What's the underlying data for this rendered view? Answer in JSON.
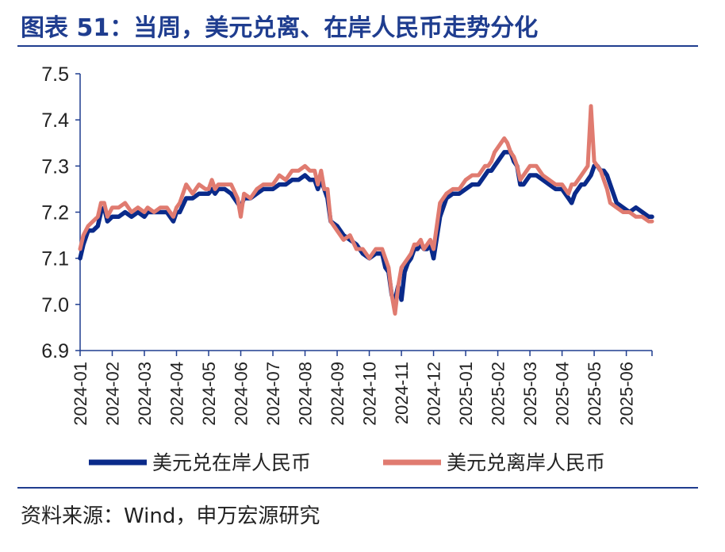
{
  "title": "图表 51：当周，美元兑离、在岸人民币走势分化",
  "source": "资料来源：Wind，申万宏源研究",
  "chart_data": {
    "type": "line",
    "title": "图表 51：当周，美元兑离、在岸人民币走势分化",
    "xlabel": "",
    "ylabel": "",
    "ylim": [
      6.9,
      7.5
    ],
    "yticks": [
      "6.9",
      "7.0",
      "7.1",
      "7.2",
      "7.3",
      "7.4",
      "7.5"
    ],
    "xticks": [
      "2024-01",
      "2024-02",
      "2024-03",
      "2024-04",
      "2024-05",
      "2024-06",
      "2024-07",
      "2024-08",
      "2024-09",
      "2024-10",
      "2024-11",
      "2024-12",
      "2025-01",
      "2025-02",
      "2025-03",
      "2025-04",
      "2025-05",
      "2025-06"
    ],
    "xrange": [
      0,
      17.8
    ],
    "grid": false,
    "legend_position": "bottom",
    "colors": {
      "onshore": "#0a2a8a",
      "offshore": "#e07b70",
      "axis": "#1f3d8f"
    },
    "series": [
      {
        "name": "美元兑在岸人民币",
        "x": [
          0,
          0.1,
          0.25,
          0.4,
          0.55,
          0.65,
          0.75,
          0.85,
          1.0,
          1.2,
          1.4,
          1.6,
          1.8,
          2.0,
          2.1,
          2.3,
          2.5,
          2.7,
          2.9,
          3.0,
          3.1,
          3.3,
          3.5,
          3.7,
          3.9,
          4.0,
          4.1,
          4.2,
          4.3,
          4.5,
          4.7,
          4.9,
          5.0,
          5.1,
          5.3,
          5.5,
          5.7,
          5.9,
          6.0,
          6.2,
          6.4,
          6.6,
          6.8,
          7.0,
          7.15,
          7.3,
          7.4,
          7.5,
          7.6,
          7.7,
          7.8,
          8.0,
          8.2,
          8.4,
          8.6,
          8.8,
          9.0,
          9.2,
          9.4,
          9.5,
          9.6,
          9.7,
          9.8,
          9.9,
          10.0,
          10.1,
          10.2,
          10.3,
          10.4,
          10.5,
          10.6,
          10.7,
          10.8,
          10.9,
          11.0,
          11.2,
          11.4,
          11.6,
          11.8,
          12.0,
          12.2,
          12.4,
          12.6,
          12.7,
          12.8,
          12.9,
          13.0,
          13.1,
          13.2,
          13.3,
          13.4,
          13.5,
          13.6,
          13.7,
          13.8,
          14.0,
          14.2,
          14.4,
          14.6,
          14.8,
          15.0,
          15.1,
          15.2,
          15.3,
          15.4,
          15.5,
          15.6,
          15.7,
          15.8,
          15.9,
          16.0,
          16.1,
          16.2,
          16.3,
          16.4,
          16.5,
          16.7,
          16.9,
          17.1,
          17.3,
          17.5,
          17.7,
          17.8
        ],
        "values": [
          7.1,
          7.13,
          7.16,
          7.16,
          7.17,
          7.2,
          7.21,
          7.18,
          7.19,
          7.19,
          7.2,
          7.19,
          7.2,
          7.19,
          7.2,
          7.2,
          7.2,
          7.2,
          7.18,
          7.2,
          7.2,
          7.23,
          7.23,
          7.24,
          7.24,
          7.24,
          7.25,
          7.24,
          7.25,
          7.25,
          7.24,
          7.22,
          7.21,
          7.23,
          7.23,
          7.24,
          7.25,
          7.25,
          7.25,
          7.26,
          7.26,
          7.27,
          7.27,
          7.28,
          7.27,
          7.27,
          7.25,
          7.27,
          7.25,
          7.23,
          7.18,
          7.17,
          7.15,
          7.14,
          7.13,
          7.11,
          7.1,
          7.11,
          7.11,
          7.08,
          7.07,
          7.02,
          7.01,
          7.04,
          7.01,
          7.07,
          7.09,
          7.1,
          7.12,
          7.12,
          7.13,
          7.12,
          7.12,
          7.13,
          7.1,
          7.19,
          7.23,
          7.24,
          7.24,
          7.25,
          7.26,
          7.26,
          7.28,
          7.29,
          7.29,
          7.3,
          7.31,
          7.32,
          7.33,
          7.33,
          7.33,
          7.31,
          7.3,
          7.26,
          7.26,
          7.28,
          7.28,
          7.27,
          7.26,
          7.25,
          7.25,
          7.24,
          7.23,
          7.22,
          7.24,
          7.25,
          7.26,
          7.26,
          7.27,
          7.28,
          7.3,
          7.3,
          7.29,
          7.29,
          7.28,
          7.26,
          7.22,
          7.21,
          7.2,
          7.21,
          7.2,
          7.19,
          7.19
        ]
      },
      {
        "name": "美元兑离岸人民币",
        "x": [
          0,
          0.1,
          0.25,
          0.4,
          0.55,
          0.65,
          0.75,
          0.85,
          1.0,
          1.2,
          1.4,
          1.6,
          1.8,
          2.0,
          2.1,
          2.3,
          2.5,
          2.7,
          2.9,
          3.0,
          3.1,
          3.3,
          3.5,
          3.7,
          3.9,
          4.0,
          4.1,
          4.2,
          4.3,
          4.5,
          4.7,
          4.9,
          5.0,
          5.1,
          5.3,
          5.5,
          5.7,
          5.9,
          6.0,
          6.2,
          6.4,
          6.6,
          6.8,
          7.0,
          7.15,
          7.3,
          7.4,
          7.5,
          7.6,
          7.7,
          7.8,
          8.0,
          8.2,
          8.4,
          8.6,
          8.8,
          9.0,
          9.2,
          9.4,
          9.5,
          9.6,
          9.7,
          9.8,
          9.9,
          10.0,
          10.1,
          10.2,
          10.3,
          10.4,
          10.5,
          10.6,
          10.7,
          10.8,
          10.9,
          11.0,
          11.2,
          11.4,
          11.6,
          11.8,
          12.0,
          12.2,
          12.4,
          12.6,
          12.7,
          12.8,
          12.9,
          13.0,
          13.1,
          13.2,
          13.3,
          13.4,
          13.5,
          13.6,
          13.7,
          13.8,
          14.0,
          14.2,
          14.4,
          14.6,
          14.8,
          15.0,
          15.1,
          15.2,
          15.3,
          15.4,
          15.5,
          15.6,
          15.7,
          15.8,
          15.9,
          16.0,
          16.1,
          16.2,
          16.3,
          16.4,
          16.5,
          16.7,
          16.9,
          17.1,
          17.3,
          17.5,
          17.7,
          17.8
        ],
        "values": [
          7.12,
          7.15,
          7.17,
          7.18,
          7.19,
          7.22,
          7.22,
          7.19,
          7.21,
          7.21,
          7.22,
          7.2,
          7.21,
          7.2,
          7.21,
          7.2,
          7.21,
          7.21,
          7.19,
          7.21,
          7.22,
          7.26,
          7.24,
          7.26,
          7.25,
          7.25,
          7.27,
          7.25,
          7.26,
          7.26,
          7.26,
          7.23,
          7.19,
          7.24,
          7.23,
          7.25,
          7.26,
          7.26,
          7.26,
          7.28,
          7.27,
          7.29,
          7.29,
          7.3,
          7.29,
          7.29,
          7.26,
          7.29,
          7.25,
          7.25,
          7.18,
          7.16,
          7.14,
          7.15,
          7.12,
          7.12,
          7.1,
          7.12,
          7.12,
          7.1,
          7.08,
          7.02,
          6.98,
          7.04,
          7.08,
          7.09,
          7.1,
          7.11,
          7.13,
          7.13,
          7.14,
          7.12,
          7.13,
          7.14,
          7.12,
          7.22,
          7.24,
          7.25,
          7.25,
          7.27,
          7.28,
          7.28,
          7.3,
          7.3,
          7.31,
          7.33,
          7.34,
          7.35,
          7.36,
          7.35,
          7.33,
          7.32,
          7.3,
          7.27,
          7.28,
          7.3,
          7.3,
          7.28,
          7.27,
          7.26,
          7.26,
          7.25,
          7.24,
          7.26,
          7.26,
          7.27,
          7.28,
          7.29,
          7.3,
          7.43,
          7.31,
          7.3,
          7.29,
          7.27,
          7.25,
          7.22,
          7.21,
          7.2,
          7.2,
          7.19,
          7.19,
          7.18,
          7.18
        ]
      }
    ]
  }
}
